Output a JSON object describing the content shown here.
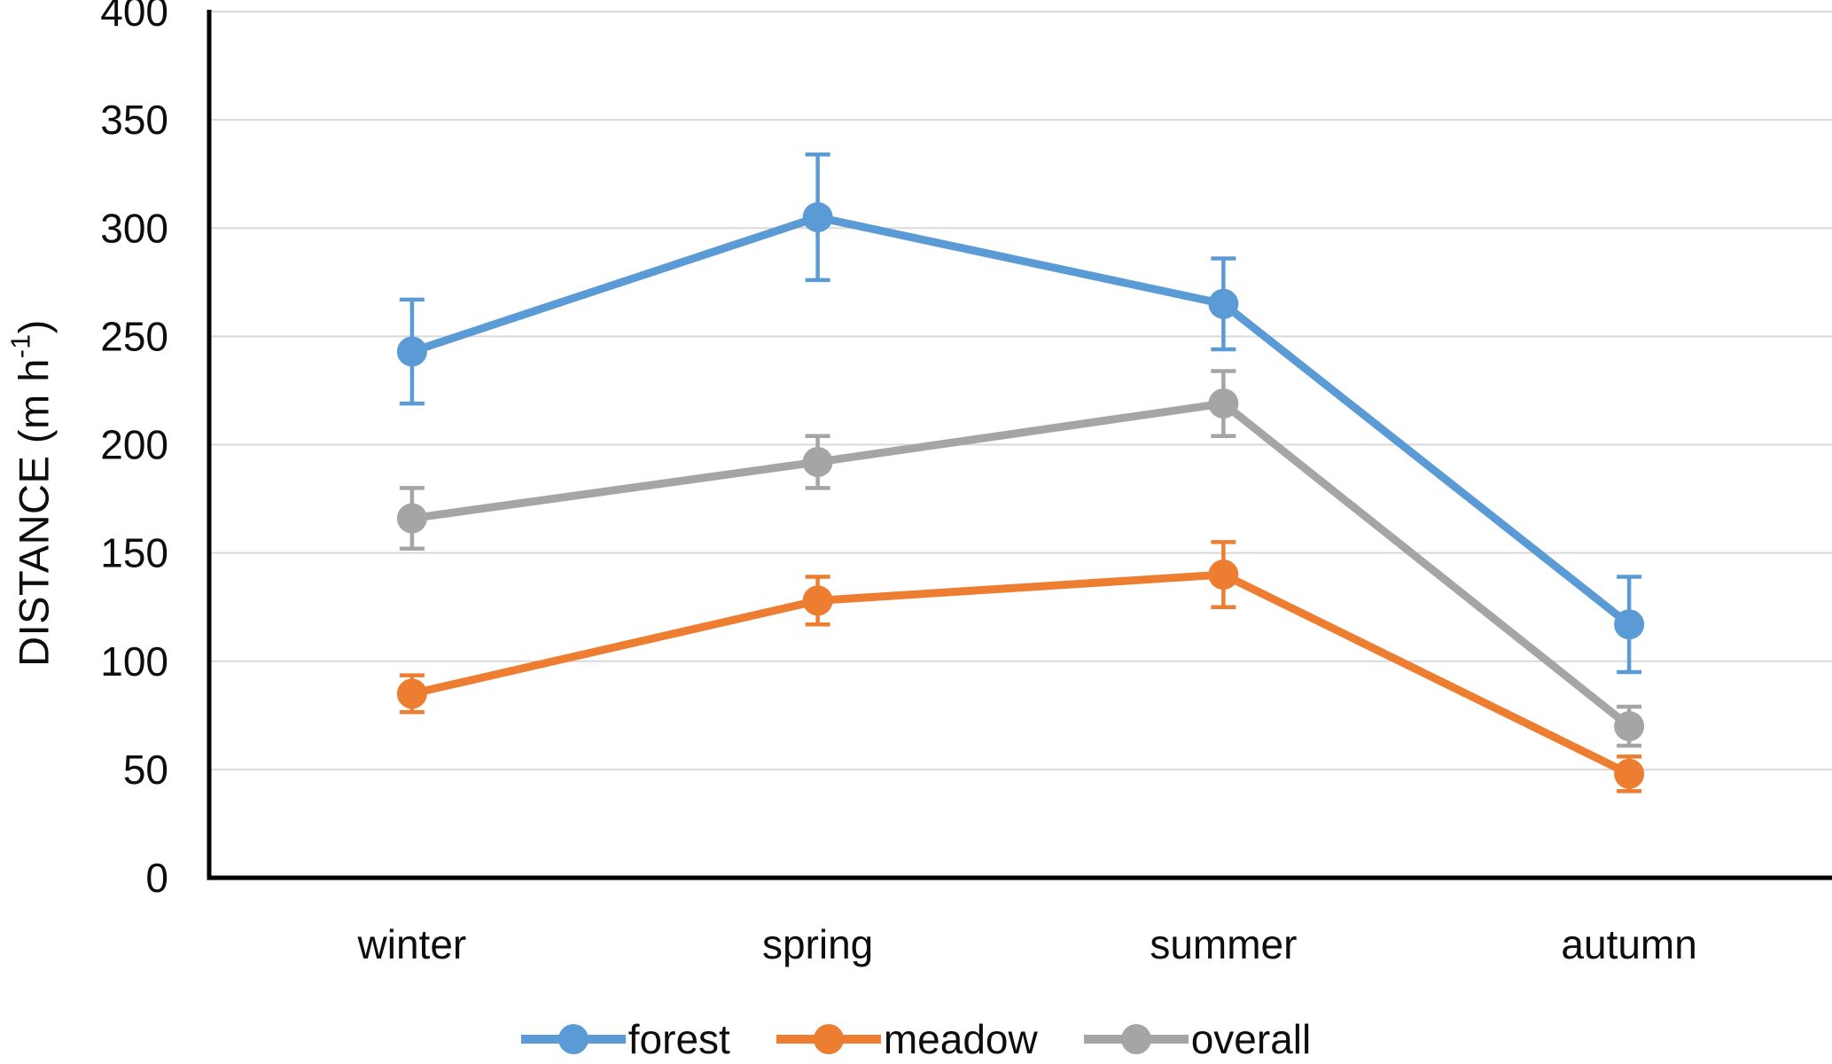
{
  "figure": {
    "background_color": "#ffffff",
    "title": ""
  },
  "y_axis_title": {
    "pre": "DISTANCE (m h",
    "sup": "-1",
    "post": ")"
  },
  "chart_data": {
    "type": "line",
    "title": "",
    "xlabel": "",
    "ylabel": "DISTANCE (m h^-1)",
    "categories": [
      "winter",
      "spring",
      "summer",
      "autumn"
    ],
    "series": [
      {
        "name": "forest",
        "color": "#5B9BD5",
        "values": [
          243,
          305,
          265,
          117
        ],
        "error_bars": [
          24,
          29,
          21,
          22
        ]
      },
      {
        "name": "meadow",
        "color": "#ED7D31",
        "values": [
          85,
          128,
          140,
          48
        ],
        "error_bars": [
          8.5,
          11,
          15,
          8
        ]
      },
      {
        "name": "overall",
        "color": "#A5A5A5",
        "values": [
          166,
          192,
          219,
          70
        ],
        "error_bars": [
          14,
          12,
          15,
          9
        ]
      }
    ],
    "ylim": [
      0,
      400
    ],
    "yticks": [
      0,
      50,
      100,
      150,
      200,
      250,
      300,
      350,
      400
    ],
    "grid": "horizontal",
    "gridline_color": "#D9D9D9",
    "axis_color": "#000000",
    "text_color": "#0d0d0d",
    "marker": "circle",
    "error_bar_caps": true,
    "legend_position": "bottom"
  }
}
